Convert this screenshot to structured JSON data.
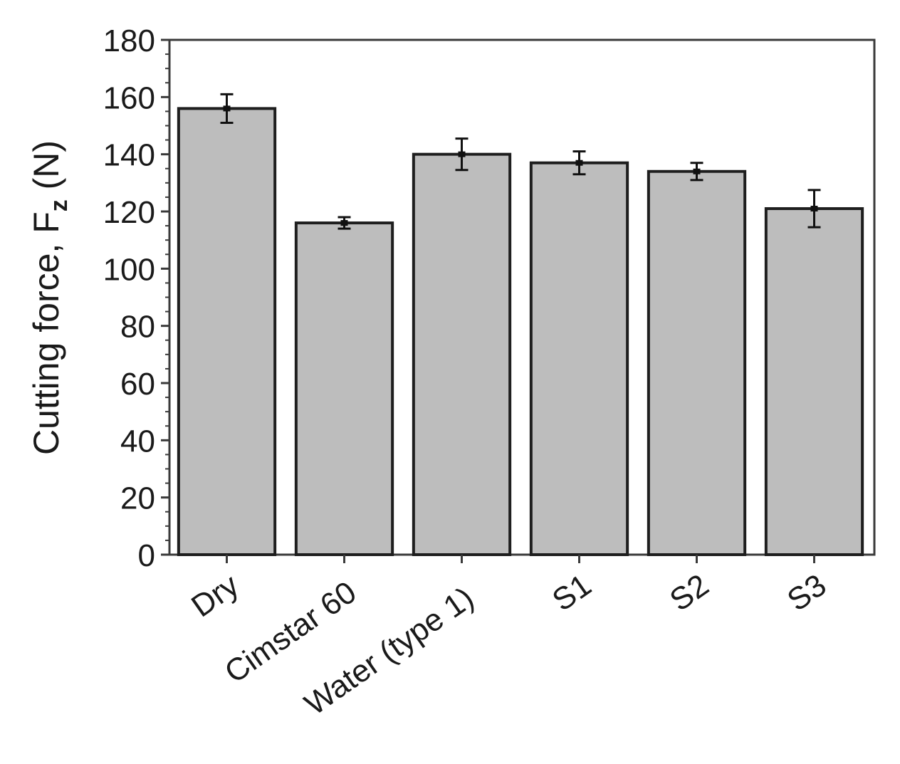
{
  "chart_data": {
    "type": "bar",
    "title": "",
    "xlabel": "",
    "ylabel": {
      "prefix": "Cutting force, F",
      "subscript": "z",
      "suffix": " (N)"
    },
    "categories": [
      "Dry",
      "Cimstar 60",
      "Water (type 1)",
      "S1",
      "S2",
      "S3"
    ],
    "values": [
      156,
      116,
      140,
      137,
      134,
      121
    ],
    "errors": [
      5,
      2,
      5.5,
      4,
      3,
      6.5
    ],
    "ylim": [
      0,
      180
    ],
    "yticks": [
      0,
      20,
      40,
      60,
      80,
      100,
      120,
      140,
      160,
      180
    ],
    "grid": false,
    "legend": "none",
    "colors": {
      "bar_fill": "#bdbdbd",
      "bar_stroke": "#1e1e1e",
      "axis": "#3a3a3a",
      "error_bar": "#111111"
    }
  }
}
